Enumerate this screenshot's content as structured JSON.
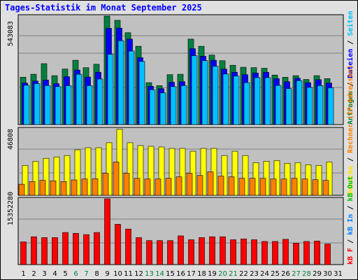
{
  "title": "Tages-Statistik im Monat September 2025",
  "y_max_labels": {
    "top": "543083",
    "middle": "46808",
    "bottom": "15352280"
  },
  "right_legend": {
    "top": [
      {
        "text": "Anfragen",
        "color": "#008040"
      },
      {
        "text": " / ",
        "color": "#000000"
      },
      {
        "text": "Dateien",
        "color": "#0000ff"
      },
      {
        "text": " / ",
        "color": "#000000"
      },
      {
        "text": "Seiten",
        "color": "#00c0ff"
      }
    ],
    "middle": [
      {
        "text": "Besuche",
        "color": "#ffe000"
      },
      {
        "text": " / ",
        "color": "#000000"
      },
      {
        "text": "Rechner (IP-Adressen)",
        "color": "#ff8000"
      }
    ],
    "bottom": [
      {
        "text": "kB F",
        "color": "#ff0000"
      },
      {
        "text": " / ",
        "color": "#000000"
      },
      {
        "text": "kB In",
        "color": "#0080ff"
      },
      {
        "text": " / ",
        "color": "#000000"
      },
      {
        "text": "kB Out",
        "color": "#00c000"
      }
    ]
  },
  "colors": {
    "panel_bg": "#c0c0c0",
    "hits": "#008040",
    "files": "#0000ff",
    "pages": "#00c0ff",
    "visits": "#ffff00",
    "sites": "#ff8000",
    "kbytes": "#ff0000",
    "weekday_label": "#000000",
    "weekend_label": "#008040"
  },
  "chart_data": [
    {
      "type": "bar",
      "title": "Anfragen / Dateien / Seiten",
      "categories": [
        "1",
        "2",
        "3",
        "4",
        "5",
        "6",
        "7",
        "8",
        "9",
        "10",
        "11",
        "12",
        "13",
        "14",
        "15",
        "16",
        "17",
        "18",
        "19",
        "20",
        "21",
        "22",
        "23",
        "24",
        "25",
        "26",
        "27",
        "28",
        "29",
        "30",
        "31"
      ],
      "weekend_days": [
        "6",
        "7",
        "13",
        "14",
        "20",
        "21",
        "27",
        "28"
      ],
      "ylim": [
        0,
        543083
      ],
      "series": [
        {
          "name": "Anfragen",
          "values": [
            237000,
            252000,
            305000,
            245000,
            278000,
            322000,
            285000,
            302000,
            543083,
            522000,
            460000,
            392000,
            210000,
            195000,
            250000,
            252000,
            428000,
            392000,
            348000,
            320000,
            297000,
            287000,
            285000,
            282000,
            248000,
            237000,
            245000,
            226000,
            245000,
            230000,
            0
          ]
        },
        {
          "name": "Dateien",
          "values": [
            208000,
            218000,
            223000,
            205000,
            240000,
            273000,
            238000,
            262000,
            482000,
            483000,
            428000,
            335000,
            192000,
            180000,
            212000,
            215000,
            380000,
            342000,
            322000,
            278000,
            262000,
            250000,
            258000,
            262000,
            230000,
            215000,
            232000,
            210000,
            225000,
            208000,
            0
          ]
        },
        {
          "name": "Seiten",
          "values": [
            197000,
            205000,
            195000,
            190000,
            195000,
            252000,
            195000,
            228000,
            352000,
            420000,
            368000,
            316000,
            175000,
            159000,
            190000,
            195000,
            345000,
            320000,
            292000,
            253000,
            243000,
            210000,
            235000,
            235000,
            196000,
            180000,
            220000,
            186000,
            195000,
            184000,
            0
          ]
        }
      ]
    },
    {
      "type": "bar",
      "title": "Besuche / Rechner (IP-Adressen)",
      "categories": [
        "1",
        "2",
        "3",
        "4",
        "5",
        "6",
        "7",
        "8",
        "9",
        "10",
        "11",
        "12",
        "13",
        "14",
        "15",
        "16",
        "17",
        "18",
        "19",
        "20",
        "21",
        "22",
        "23",
        "24",
        "25",
        "26",
        "27",
        "28",
        "29",
        "30",
        "31"
      ],
      "ylim": [
        0,
        46808
      ],
      "series": [
        {
          "name": "Besuche",
          "values": [
            21000,
            24000,
            26000,
            27000,
            28000,
            32000,
            33500,
            33500,
            37000,
            46500,
            37000,
            35000,
            34500,
            34000,
            33000,
            33000,
            31000,
            33000,
            33000,
            28000,
            31000,
            28000,
            23000,
            24000,
            24500,
            22500,
            23000,
            21500,
            21000,
            23500,
            0
          ]
        },
        {
          "name": "Rechner (IP-Adressen)",
          "values": [
            7800,
            9700,
            10500,
            10200,
            9700,
            10800,
            11500,
            11700,
            15500,
            23500,
            15500,
            12000,
            11500,
            11500,
            12000,
            13000,
            15500,
            14000,
            16500,
            13500,
            13000,
            12000,
            12000,
            12000,
            11500,
            11500,
            12000,
            11500,
            11000,
            10500,
            0
          ]
        }
      ]
    },
    {
      "type": "bar",
      "title": "kB F / kB In / kB Out",
      "categories": [
        "1",
        "2",
        "3",
        "4",
        "5",
        "6",
        "7",
        "8",
        "9",
        "10",
        "11",
        "12",
        "13",
        "14",
        "15",
        "16",
        "17",
        "18",
        "19",
        "20",
        "21",
        "22",
        "23",
        "24",
        "25",
        "26",
        "27",
        "28",
        "29",
        "30",
        "31"
      ],
      "ylim": [
        0,
        15352280
      ],
      "series": [
        {
          "name": "kB F",
          "values": [
            5300000,
            6500000,
            6300000,
            6300000,
            7500000,
            7300000,
            7000000,
            7500000,
            15352280,
            9400000,
            8300000,
            6300000,
            5600000,
            5600000,
            5600000,
            6700000,
            5800000,
            6300000,
            6500000,
            6500000,
            5800000,
            6000000,
            5800000,
            5400000,
            5400000,
            5900000,
            5000000,
            5400000,
            5500000,
            4800000,
            0
          ]
        }
      ]
    }
  ]
}
